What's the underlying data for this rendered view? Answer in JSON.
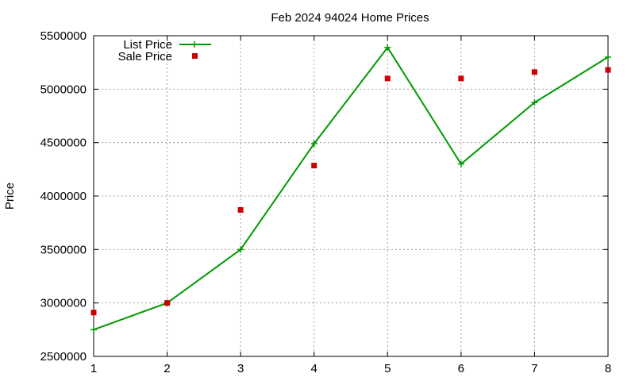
{
  "chart_data": {
    "type": "line",
    "title": "Feb 2024 94024 Home Prices",
    "xlabel": "",
    "ylabel": "Price",
    "x": [
      1,
      2,
      3,
      4,
      5,
      6,
      7,
      8
    ],
    "xlim": [
      1,
      8
    ],
    "ylim": [
      2500000,
      5500000
    ],
    "xticks": [
      "1",
      "2",
      "3",
      "4",
      "5",
      "6",
      "7",
      "8"
    ],
    "yticks": [
      "2500000",
      "3000000",
      "3500000",
      "4000000",
      "4500000",
      "5000000",
      "5500000"
    ],
    "grid": true,
    "legend_position": "top-left",
    "series": [
      {
        "name": "List Price",
        "style": "line+cross",
        "color": "#009900",
        "values": [
          2750000,
          3000000,
          3500000,
          4490000,
          5390000,
          4300000,
          4875000,
          5300000
        ]
      },
      {
        "name": "Sale Price",
        "style": "square",
        "color": "#cc0000",
        "values": [
          2910000,
          3000000,
          3870000,
          4285000,
          5100000,
          5100000,
          5160000,
          5180000
        ]
      }
    ]
  }
}
